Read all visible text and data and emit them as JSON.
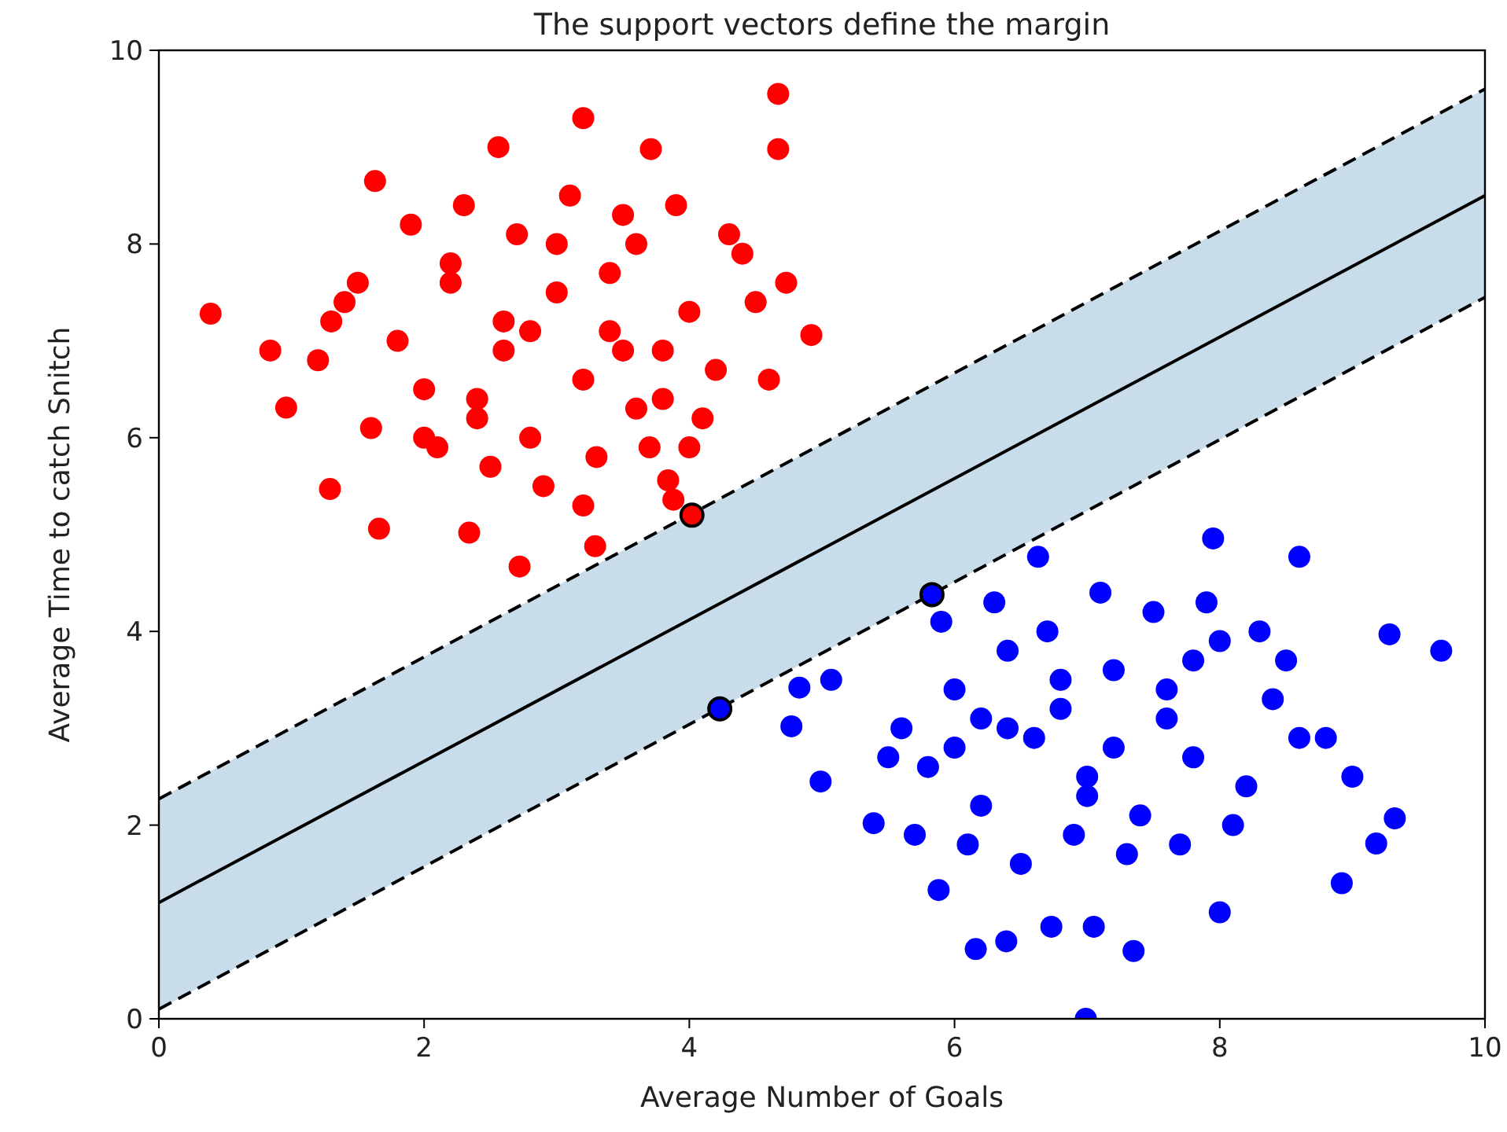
{
  "chart_data": {
    "type": "scatter",
    "title": "The support vectors define the margin",
    "xlabel": "Average Number of Goals",
    "ylabel": "Average Time to catch Snitch",
    "xlim": [
      0,
      10
    ],
    "ylim": [
      0,
      10
    ],
    "xticks": [
      0,
      2,
      4,
      6,
      8,
      10
    ],
    "yticks": [
      0,
      2,
      4,
      6,
      8,
      10
    ],
    "grid": false,
    "marker": "circle",
    "series": [
      {
        "type": "line",
        "marker": "none",
        "color": "#000000",
        "line_style": "solid",
        "x": [
          0,
          10
        ],
        "values": [
          1.2,
          8.5
        ],
        "lower": [
          0.1,
          7.45
        ],
        "upper": [
          2.27,
          9.6
        ]
      },
      {
        "type": "line",
        "marker": "none",
        "color": "#000000",
        "line_style": "dashed",
        "x": [
          0,
          10
        ],
        "values": [
          2.27,
          9.6
        ]
      },
      {
        "type": "line",
        "marker": "none",
        "color": "#000000",
        "line_style": "dashed",
        "x": [
          0,
          10
        ],
        "values": [
          0.1,
          7.45
        ]
      },
      {
        "color": "#ff0000",
        "x": [
          0.39,
          0.84,
          0.96,
          1.29,
          1.66,
          2.34,
          2.72,
          3.29,
          4.67,
          4.67,
          3.2,
          1.63,
          2.56,
          3.71,
          4.92,
          4.73,
          3.84,
          3.88,
          1.2,
          1.4,
          1.8,
          2.0,
          2.2,
          2.4,
          2.6,
          2.8,
          3.0,
          3.2,
          3.4,
          3.6,
          3.8,
          4.0,
          4.2,
          4.4,
          1.6,
          1.9,
          2.3,
          2.7,
          3.1,
          3.5,
          3.9,
          4.3,
          2.1,
          2.5,
          2.9,
          3.3,
          3.7,
          4.1,
          2.2,
          2.6,
          3.0,
          3.4,
          3.8,
          4.5,
          2.4,
          2.8,
          3.2,
          3.6,
          4.0,
          1.5,
          1.3,
          4.6,
          2.0,
          3.5
        ],
        "values": [
          7.28,
          6.9,
          6.31,
          5.47,
          5.06,
          5.02,
          4.67,
          4.88,
          9.55,
          8.98,
          9.3,
          8.65,
          9.0,
          8.98,
          7.06,
          7.6,
          5.56,
          5.36,
          6.8,
          7.4,
          7.0,
          6.5,
          7.8,
          6.2,
          7.2,
          6.0,
          7.5,
          6.6,
          7.1,
          8.0,
          6.4,
          7.3,
          6.7,
          7.9,
          6.1,
          8.2,
          8.4,
          8.1,
          8.5,
          8.3,
          8.4,
          8.1,
          5.9,
          5.7,
          5.5,
          5.8,
          5.9,
          6.2,
          7.6,
          6.9,
          8.0,
          7.7,
          6.9,
          7.4,
          6.4,
          7.1,
          5.3,
          6.3,
          5.9,
          7.6,
          7.2,
          6.6,
          6.0,
          6.9
        ]
      },
      {
        "color": "#0000ff",
        "x": [
          9.67,
          9.28,
          8.6,
          7.95,
          6.63,
          9.32,
          9.18,
          8.92,
          8.0,
          7.35,
          6.99,
          6.16,
          6.39,
          6.73,
          7.05,
          5.88,
          4.77,
          4.99,
          4.83,
          5.07,
          5.39,
          5.6,
          5.8,
          6.0,
          6.2,
          6.4,
          6.6,
          6.8,
          7.0,
          7.2,
          7.4,
          7.6,
          7.8,
          8.0,
          8.2,
          8.4,
          8.6,
          5.9,
          6.3,
          6.7,
          7.1,
          7.5,
          7.9,
          8.3,
          6.1,
          6.5,
          6.9,
          7.3,
          7.7,
          8.1,
          6.0,
          6.4,
          6.8,
          7.2,
          7.6,
          8.8,
          9.0,
          5.5,
          6.2,
          7.0,
          7.8,
          5.7,
          8.5
        ],
        "values": [
          3.8,
          3.97,
          4.77,
          4.96,
          4.77,
          2.07,
          1.81,
          1.4,
          1.1,
          0.7,
          0.0,
          0.72,
          0.8,
          0.95,
          0.95,
          1.33,
          3.02,
          2.45,
          3.42,
          3.5,
          2.02,
          3.0,
          2.6,
          3.4,
          2.2,
          3.8,
          2.9,
          3.2,
          2.5,
          3.6,
          2.1,
          3.1,
          2.7,
          3.9,
          2.4,
          3.3,
          2.9,
          4.1,
          4.3,
          4.0,
          4.4,
          4.2,
          4.3,
          4.0,
          1.8,
          1.6,
          1.9,
          1.7,
          1.8,
          2.0,
          2.8,
          3.0,
          3.5,
          2.8,
          3.4,
          2.9,
          2.5,
          2.7,
          3.1,
          2.3,
          3.7,
          1.9,
          3.7
        ]
      },
      {
        "colors": [
          "#ff0000",
          "#0000ff",
          "#0000ff"
        ],
        "x": [
          4.02,
          5.83,
          4.23
        ],
        "values": [
          5.2,
          4.38,
          3.2
        ]
      }
    ]
  }
}
